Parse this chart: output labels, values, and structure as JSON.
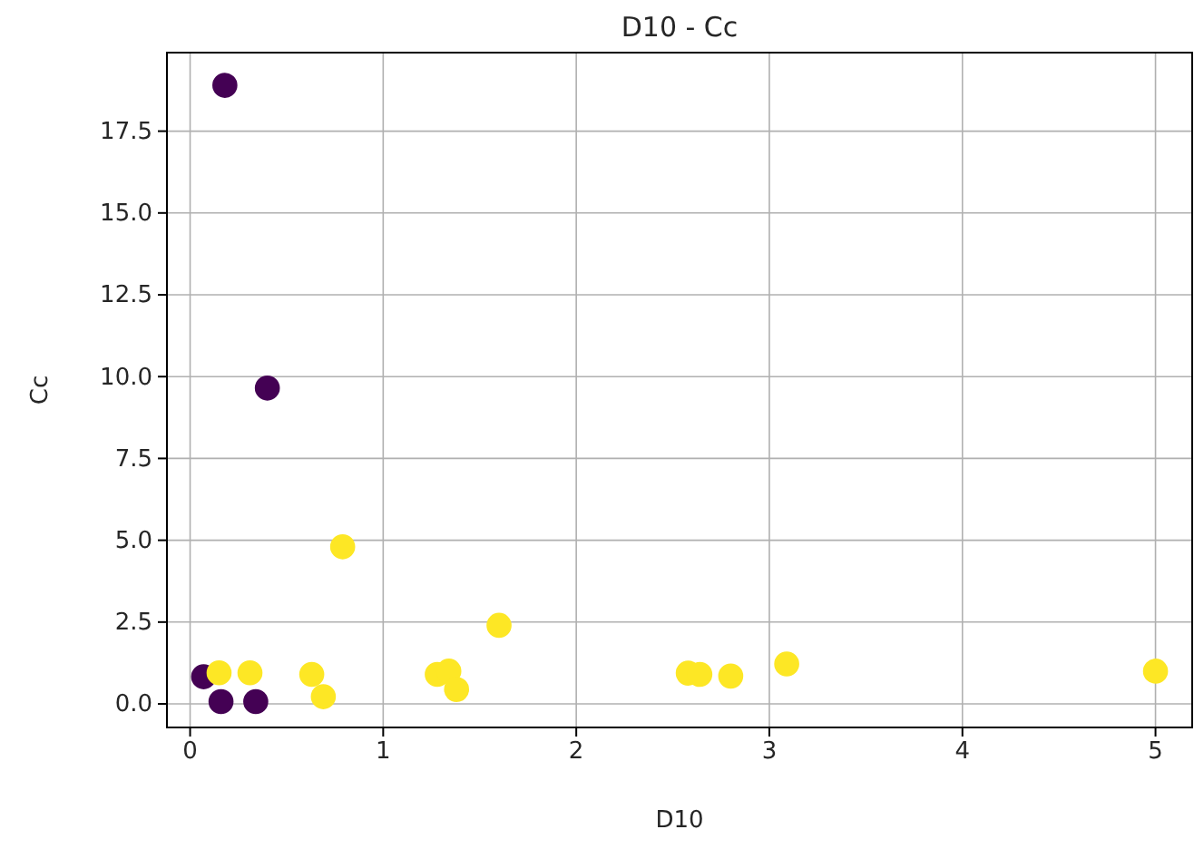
{
  "chart_data": {
    "type": "scatter",
    "title": "D10 - Cc",
    "xlabel": "D10",
    "ylabel": "Cc",
    "xlim": [
      -0.12,
      5.19
    ],
    "ylim": [
      -0.72,
      19.9
    ],
    "xticks": [
      0,
      1,
      2,
      3,
      4,
      5
    ],
    "yticks": [
      {
        "value": 0,
        "label": "0.0"
      },
      {
        "value": 2.5,
        "label": "2.5"
      },
      {
        "value": 5,
        "label": "5.0"
      },
      {
        "value": 7.5,
        "label": "7.5"
      },
      {
        "value": 10,
        "label": "10.0"
      },
      {
        "value": 12.5,
        "label": "12.5"
      },
      {
        "value": 15,
        "label": "15.0"
      },
      {
        "value": 17.5,
        "label": "17.5"
      }
    ],
    "grid": true,
    "marker": "circle",
    "series": [
      {
        "color": "#440154",
        "x": [
          0.07,
          0.18,
          0.4,
          0.16,
          0.34
        ],
        "values": [
          0.83,
          18.9,
          9.65,
          0.07,
          0.07
        ]
      },
      {
        "color": "#fde725",
        "x": [
          0.15,
          0.31,
          0.63,
          0.69,
          0.79,
          1.28,
          1.34,
          1.38,
          1.6,
          2.58,
          2.64,
          2.8,
          3.09,
          5.0
        ],
        "values": [
          0.95,
          0.95,
          0.9,
          0.22,
          4.8,
          0.9,
          1.0,
          0.44,
          2.4,
          0.94,
          0.9,
          0.85,
          1.22,
          1.0
        ]
      }
    ]
  }
}
